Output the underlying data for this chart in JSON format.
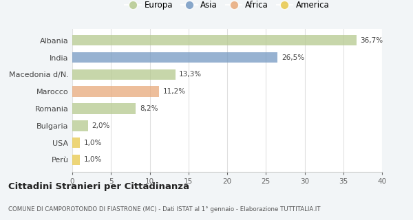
{
  "categories": [
    "Albania",
    "India",
    "Macedonia d/N.",
    "Marocco",
    "Romania",
    "Bulgaria",
    "USA",
    "Perù"
  ],
  "values": [
    36.7,
    26.5,
    13.3,
    11.2,
    8.2,
    2.0,
    1.0,
    1.0
  ],
  "labels": [
    "36,7%",
    "26,5%",
    "13,3%",
    "11,2%",
    "8,2%",
    "2,0%",
    "1,0%",
    "1,0%"
  ],
  "colors": [
    "#b5c98e",
    "#7499c2",
    "#b5c98e",
    "#e8a97a",
    "#b5c98e",
    "#b5c98e",
    "#e8c84a",
    "#e8c84a"
  ],
  "legend_labels": [
    "Europa",
    "Asia",
    "Africa",
    "America"
  ],
  "legend_colors": [
    "#b5c98e",
    "#7499c2",
    "#e8a97a",
    "#e8c84a"
  ],
  "xlim": [
    0,
    40
  ],
  "xticks": [
    0,
    5,
    10,
    15,
    20,
    25,
    30,
    35,
    40
  ],
  "title": "Cittadini Stranieri per Cittadinanza",
  "subtitle": "COMUNE DI CAMPOROTONDO DI FIASTRONE (MC) - Dati ISTAT al 1° gennaio - Elaborazione TUTTITALIA.IT",
  "background_color": "#f2f5f7",
  "plot_background": "#ffffff",
  "grid_color": "#e0e0e0",
  "bar_alpha": 0.75
}
